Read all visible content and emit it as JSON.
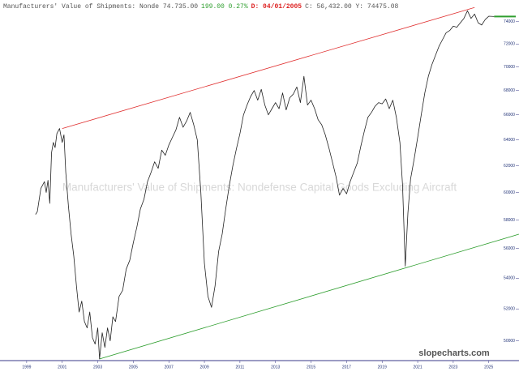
{
  "chart_data": {
    "type": "line",
    "title_segments": [
      {
        "text": "Manufacturers' Value of Shipments: Nonde 74.735.00",
        "color": "#555555"
      },
      {
        "text": "199.00 0.27%",
        "color": "#2e9e2e"
      },
      {
        "text": "D: 04/01/2005",
        "color": "#dd2222"
      },
      {
        "text": "C: 56,432.00 Y:  74475.08",
        "color": "#555555"
      }
    ],
    "watermark": "Manufacturers' Value of Shipments: Nondefense Capital Goods Excluding Aircraft",
    "source": "slopecharts.com",
    "log_scale": true,
    "xlim": [
      1997.5,
      2026.7
    ],
    "ylim": [
      48800,
      76000
    ],
    "xticks": [
      1999,
      2001,
      2003,
      2005,
      2007,
      2009,
      2011,
      2013,
      2015,
      2017,
      2019,
      2021,
      2023,
      2025
    ],
    "yticks": [
      50000,
      52000,
      54000,
      56000,
      58000,
      60000,
      62000,
      64000,
      66000,
      68000,
      70000,
      72000,
      74000
    ],
    "series": [
      {
        "color": "#222222",
        "x": [
          1999.5,
          1999.6,
          1999.8,
          2000.0,
          2000.1,
          2000.2,
          2000.3,
          2000.4,
          2000.5,
          2000.6,
          2000.7,
          2000.85,
          2001.0,
          2001.1,
          2001.2,
          2001.35,
          2001.5,
          2001.65,
          2001.8,
          2001.95,
          2002.1,
          2002.25,
          2002.4,
          2002.55,
          2002.7,
          2002.85,
          2003.0,
          2003.1,
          2003.25,
          2003.4,
          2003.55,
          2003.7,
          2003.85,
          2004.0,
          2004.2,
          2004.4,
          2004.6,
          2004.8,
          2005.0,
          2005.2,
          2005.4,
          2005.6,
          2005.8,
          2006.0,
          2006.2,
          2006.4,
          2006.6,
          2006.8,
          2007.0,
          2007.2,
          2007.4,
          2007.6,
          2007.8,
          2008.0,
          2008.2,
          2008.4,
          2008.6,
          2008.8,
          2009.0,
          2009.2,
          2009.4,
          2009.6,
          2009.8,
          2010.0,
          2010.2,
          2010.4,
          2010.6,
          2010.8,
          2011.0,
          2011.2,
          2011.4,
          2011.6,
          2011.8,
          2012.0,
          2012.2,
          2012.4,
          2012.6,
          2012.8,
          2013.0,
          2013.2,
          2013.4,
          2013.6,
          2013.8,
          2014.0,
          2014.2,
          2014.4,
          2014.6,
          2014.8,
          2015.0,
          2015.2,
          2015.4,
          2015.6,
          2015.8,
          2016.0,
          2016.2,
          2016.4,
          2016.6,
          2016.8,
          2017.0,
          2017.2,
          2017.4,
          2017.6,
          2017.8,
          2018.0,
          2018.2,
          2018.4,
          2018.6,
          2018.8,
          2019.0,
          2019.2,
          2019.4,
          2019.6,
          2019.8,
          2020.0,
          2020.15,
          2020.3,
          2020.45,
          2020.6,
          2020.8,
          2021.0,
          2021.2,
          2021.4,
          2021.6,
          2021.8,
          2022.0,
          2022.2,
          2022.4,
          2022.6,
          2022.8,
          2023.0,
          2023.2,
          2023.4,
          2023.6,
          2023.8,
          2024.0,
          2024.2,
          2024.4,
          2024.6,
          2024.8,
          2025.0,
          2025.3
        ],
        "values": [
          58400,
          58600,
          60300,
          60800,
          60000,
          60900,
          59200,
          63000,
          63800,
          63400,
          64500,
          64900,
          63800,
          64400,
          61500,
          59000,
          57000,
          55500,
          53500,
          51800,
          52500,
          51200,
          50800,
          51800,
          50200,
          49800,
          50800,
          48900,
          50500,
          49600,
          50800,
          50000,
          51500,
          51200,
          52800,
          53200,
          54600,
          55200,
          56400,
          57500,
          58800,
          59500,
          60800,
          61500,
          62300,
          61800,
          63200,
          62800,
          63600,
          64200,
          64800,
          65800,
          65000,
          65500,
          66200,
          65200,
          64000,
          60000,
          55000,
          52800,
          52100,
          53500,
          55800,
          57000,
          58800,
          60500,
          62000,
          63300,
          64500,
          66000,
          66800,
          67500,
          68000,
          67200,
          68100,
          66800,
          66000,
          66500,
          67000,
          66500,
          67800,
          66400,
          67400,
          67700,
          68300,
          67000,
          69200,
          66800,
          67200,
          66500,
          65600,
          65200,
          64400,
          63400,
          62300,
          61200,
          59800,
          60300,
          59900,
          60800,
          61500,
          62200,
          63500,
          64700,
          65800,
          66200,
          66700,
          67000,
          66900,
          67300,
          66500,
          67200,
          65800,
          63800,
          60500,
          54800,
          58500,
          61000,
          62500,
          64200,
          66000,
          67800,
          69200,
          70200,
          71000,
          71800,
          72400,
          73000,
          73200,
          73600,
          73500,
          73900,
          74300,
          75000,
          74300,
          74700,
          73900,
          73700,
          74200,
          74500,
          74475
        ]
      }
    ],
    "trendlines": [
      {
        "color": "#e03030",
        "x": [
          2001.0,
          2024.2
        ],
        "values": [
          64900,
          75300
        ]
      },
      {
        "color": "#2e9e2e",
        "x": [
          2003.1,
          2026.7
        ],
        "values": [
          48900,
          57000
        ]
      }
    ],
    "last_marker_color": "#2e9e2e"
  }
}
